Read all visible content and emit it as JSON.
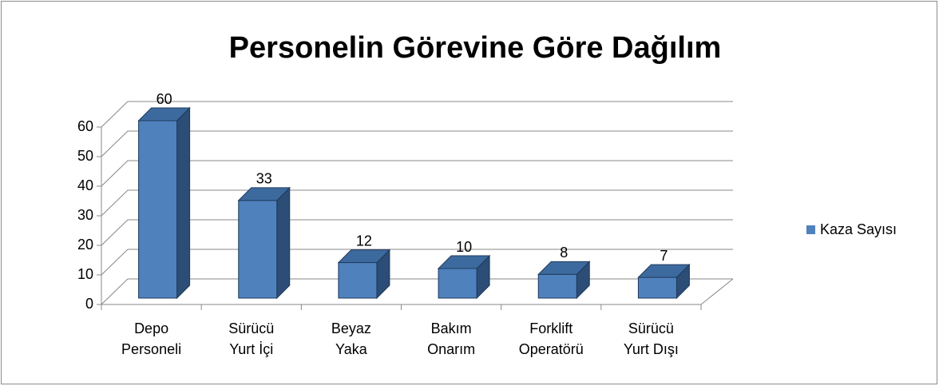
{
  "chart_data": {
    "type": "bar3d",
    "title": "Personelin Görevine Göre Dağılım",
    "categories": [
      "Depo Personeli",
      "Sürücü Yurt İçi",
      "Beyaz Yaka",
      "Bakım Onarım",
      "Forklift Operatörü",
      "Sürücü Yurt Dışı"
    ],
    "series": [
      {
        "name": "Kaza Sayısı",
        "color": "#4f81bd",
        "values": [
          60,
          33,
          12,
          10,
          8,
          7
        ]
      }
    ],
    "ylim": [
      0,
      60
    ],
    "yticks": [
      0,
      10,
      20,
      30,
      40,
      50,
      60
    ],
    "grid": true,
    "legend": "right"
  }
}
